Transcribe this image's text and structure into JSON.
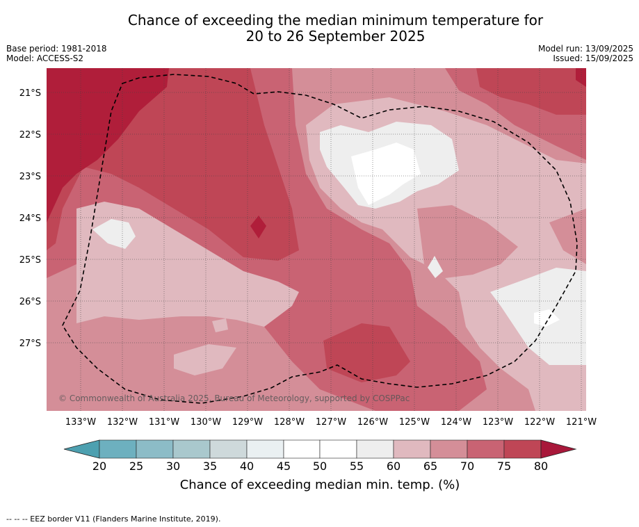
{
  "title_line1": "Chance of exceeding the median minimum temperature for",
  "title_line2": "20 to 26 September 2025",
  "base_period": "Base period: 1981-2018",
  "model": "Model: ACCESS-S2",
  "model_run": "Model run: 13/09/2025",
  "issued": "Issued: 15/09/2025",
  "copyright": "© Commonwealth of Australia 2025, Bureau of Meteorology, supported by COSPPac",
  "footnote": "-- -- -- EEZ border V11 (Flanders Marine Institute, 2019).",
  "map": {
    "lon_labels": [
      "133°W",
      "132°W",
      "131°W",
      "130°W",
      "129°W",
      "128°W",
      "127°W",
      "126°W",
      "125°W",
      "124°W",
      "123°W",
      "122°W",
      "121°W"
    ],
    "lat_labels": [
      "21°S",
      "22°S",
      "23°S",
      "24°S",
      "25°S",
      "26°S",
      "27°S"
    ],
    "colors": {
      "c55_60": "#eeeeee",
      "c60_65": "#e0b9bf",
      "c65_70": "#d48e98",
      "c70_75": "#c96373",
      "c75_80": "#bf4656",
      "c80plus": "#b01e3a",
      "white": "#ffffff"
    }
  },
  "colorbar": {
    "title": "Chance of exceeding median min. temp. (%)",
    "ticks": [
      "20",
      "25",
      "30",
      "35",
      "40",
      "45",
      "50",
      "55",
      "60",
      "65",
      "70",
      "75",
      "80"
    ],
    "below_color": "#4da0b0",
    "above_color": "#a8183a",
    "colors": [
      "#6db0bf",
      "#8cbcc7",
      "#a9c8cd",
      "#ced9db",
      "#eaf0f2",
      "#ffffff",
      "#ffffff",
      "#eeeeee",
      "#e0b9bf",
      "#d48e98",
      "#c96373",
      "#bf4656"
    ]
  }
}
